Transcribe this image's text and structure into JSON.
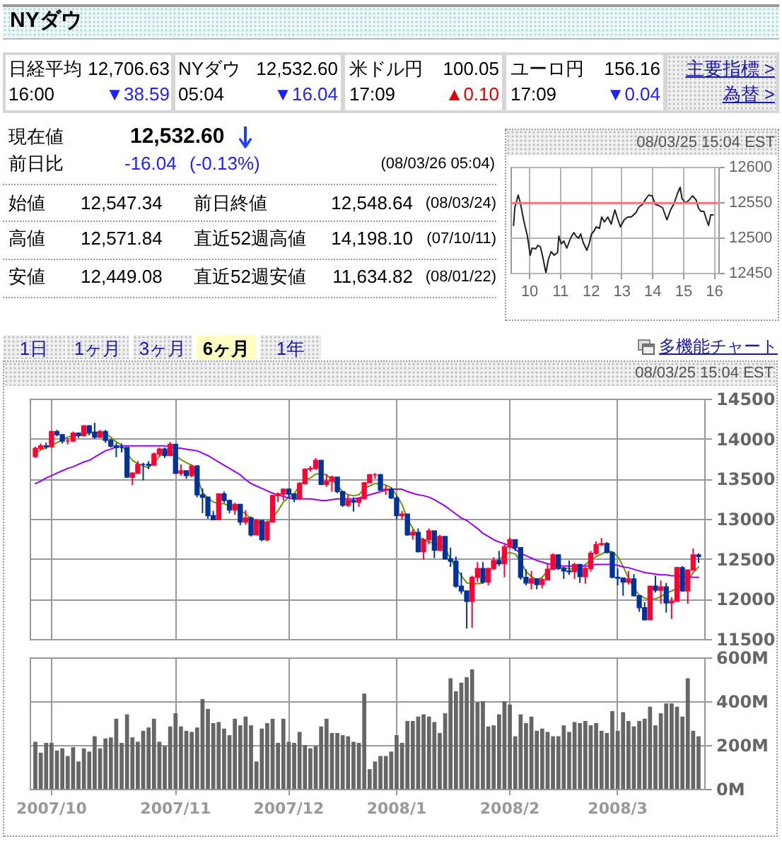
{
  "chart_data": [
    {
      "type": "other",
      "title": "NYダウ",
      "annotations": [
        "日経平均",
        "12,706.63",
        "16:00",
        "▼38.59",
        "NYダウ",
        "12,532.60",
        "05:04",
        "▼16.04",
        "米ドル円",
        "100.05",
        "17:09",
        "▲0.10",
        "ユーロ円",
        "156.16",
        "17:09",
        "▼0.04",
        "主要指標 >",
        "為替 >",
        "現在値",
        "12,532.60",
        "前日比",
        "-16.04",
        "(-0.13%)",
        "(08/03/26 05:04)",
        "始値",
        "12,547.34",
        "前日終値",
        "12,548.64",
        "(08/03/24)",
        "高値",
        "12,571.84",
        "直近52週高値",
        "14,198.10",
        "(07/10/11)",
        "安値",
        "12,449.08",
        "直近52週安値",
        "11,634.82",
        "(08/01/22)",
        "1日",
        "1ヶ月",
        "3ヶ月",
        "6ヶ月",
        "1年",
        "多機能チャート"
      ]
    },
    {
      "type": "line",
      "subtitle": "08/03/25 15:04 EST",
      "x": [
        9.5,
        9.54,
        9.65,
        9.72,
        9.84,
        9.95,
        10.04,
        10.1,
        10.22,
        10.29,
        10.37,
        10.45,
        10.55,
        10.63,
        10.72,
        10.82,
        10.93,
        10.97,
        11.05,
        11.13,
        11.23,
        11.35,
        11.46,
        11.53,
        11.61,
        11.68,
        11.76,
        11.88,
        11.96,
        12.03,
        12.11,
        12.18,
        12.29,
        12.36,
        12.45,
        12.56,
        12.67,
        12.79,
        12.86,
        12.97,
        13.09,
        13.21,
        13.32,
        13.47,
        13.57,
        13.69,
        13.8,
        13.89,
        14,
        14.1,
        14.22,
        14.34,
        14.48,
        14.6,
        14.72,
        14.82,
        14.91,
        14.97,
        15.08,
        15.2,
        15.31,
        15.43,
        15.5,
        15.58,
        15.68,
        15.75,
        15.83,
        15.9,
        15.98
      ],
      "values": [
        12517,
        12542,
        12560,
        12549,
        12522,
        12502,
        12475,
        12485,
        12484,
        12489,
        12487,
        12472,
        12450,
        12469,
        12480,
        12475,
        12479,
        12502,
        12491,
        12495,
        12485,
        12499,
        12507,
        12502,
        12499,
        12505,
        12493,
        12482,
        12492,
        12505,
        12509,
        12515,
        12513,
        12529,
        12522,
        12529,
        12519,
        12539,
        12529,
        12515,
        12525,
        12529,
        12529,
        12535,
        12543,
        12547,
        12555,
        12560,
        12559,
        12547,
        12545,
        12542,
        12525,
        12539,
        12549,
        12562,
        12571,
        12555,
        12549,
        12553,
        12559,
        12553,
        12542,
        12537,
        12537,
        12527,
        12517,
        12532,
        12532
      ],
      "color": "#222222",
      "xlim": [
        9.4,
        16.15
      ],
      "ylim": [
        12450,
        12600
      ],
      "xticks": [
        10,
        11,
        12,
        13,
        14,
        15,
        16
      ],
      "yticks": [
        12450,
        12500,
        12550,
        12600
      ],
      "grid": true,
      "ref_lines": [
        {
          "axis": "y",
          "value": 12548.64,
          "color": "#ff7070"
        }
      ]
    },
    {
      "type": "candlestick",
      "subtitle": "08/03/25 15:04 EST",
      "categories": [
        null,
        null,
        null,
        "2007/10",
        null,
        null,
        null,
        null,
        null,
        null,
        null,
        null,
        null,
        null,
        null,
        null,
        null,
        null,
        null,
        null,
        null,
        null,
        null,
        null,
        null,
        null,
        "2007/11",
        null,
        null,
        null,
        null,
        null,
        null,
        null,
        null,
        null,
        null,
        null,
        null,
        null,
        null,
        null,
        null,
        null,
        null,
        null,
        null,
        "2007/12",
        null,
        null,
        null,
        null,
        null,
        null,
        null,
        null,
        null,
        null,
        null,
        null,
        null,
        null,
        null,
        null,
        null,
        null,
        null,
        "2008/1",
        null,
        null,
        null,
        null,
        null,
        null,
        null,
        null,
        null,
        null,
        null,
        null,
        null,
        null,
        null,
        null,
        null,
        null,
        null,
        null,
        "2008/2",
        null,
        null,
        null,
        null,
        null,
        null,
        null,
        null,
        null,
        null,
        null,
        null,
        null,
        null,
        null,
        null,
        null,
        null,
        null,
        "2008/3",
        null,
        null,
        null,
        null,
        null,
        null,
        null,
        null,
        null,
        null,
        null,
        null,
        null,
        null,
        null
      ],
      "ohlc": [
        [
          13780,
          13900,
          13760,
          13880
        ],
        [
          13880,
          13940,
          13860,
          13910
        ],
        [
          13910,
          13950,
          13870,
          13900
        ],
        [
          13900,
          14100,
          13890,
          14090
        ],
        [
          14090,
          14110,
          14030,
          14050
        ],
        [
          14050,
          14060,
          13940,
          13970
        ],
        [
          13970,
          14010,
          13930,
          13970
        ],
        [
          13970,
          14090,
          13960,
          14070
        ],
        [
          14070,
          14080,
          14010,
          14040
        ],
        [
          14040,
          14170,
          14030,
          14160
        ],
        [
          14160,
          14170,
          14040,
          14080
        ],
        [
          14080,
          14200,
          14000,
          14020
        ],
        [
          14020,
          14110,
          14010,
          14090
        ],
        [
          14090,
          14110,
          13950,
          13980
        ],
        [
          13980,
          14000,
          13890,
          13910
        ],
        [
          13910,
          13950,
          13770,
          13890
        ],
        [
          13890,
          13940,
          13830,
          13890
        ],
        [
          13890,
          13890,
          13510,
          13520
        ],
        [
          13520,
          13580,
          13420,
          13570
        ],
        [
          13570,
          13720,
          13560,
          13680
        ],
        [
          13680,
          13700,
          13480,
          13680
        ],
        [
          13680,
          13720,
          13620,
          13670
        ],
        [
          13670,
          13830,
          13660,
          13810
        ],
        [
          13810,
          13890,
          13780,
          13870
        ],
        [
          13870,
          13890,
          13760,
          13790
        ],
        [
          13790,
          13960,
          13790,
          13930
        ],
        [
          13930,
          13930,
          13560,
          13570
        ],
        [
          13570,
          13680,
          13540,
          13600
        ],
        [
          13600,
          13600,
          13500,
          13540
        ],
        [
          13540,
          13680,
          13520,
          13660
        ],
        [
          13660,
          13670,
          13270,
          13300
        ],
        [
          13300,
          13380,
          13070,
          13270
        ],
        [
          13270,
          13270,
          13000,
          13040
        ],
        [
          13040,
          13100,
          12980,
          12990
        ],
        [
          12990,
          13310,
          12990,
          13310
        ],
        [
          13310,
          13340,
          13200,
          13230
        ],
        [
          13230,
          13240,
          13070,
          13110
        ],
        [
          13110,
          13200,
          13050,
          13180
        ],
        [
          13180,
          13180,
          12920,
          12960
        ],
        [
          12960,
          13110,
          12930,
          13010
        ],
        [
          13010,
          13030,
          12780,
          12800
        ],
        [
          12800,
          13000,
          12800,
          12980
        ],
        [
          12980,
          12980,
          12720,
          12740
        ],
        [
          12740,
          12980,
          12720,
          12960
        ],
        [
          12960,
          13300,
          12960,
          13290
        ],
        [
          13290,
          13330,
          13210,
          13310
        ],
        [
          13310,
          13380,
          13230,
          13370
        ],
        [
          13370,
          13380,
          13260,
          13310
        ],
        [
          13310,
          13320,
          13210,
          13250
        ],
        [
          13250,
          13460,
          13240,
          13440
        ],
        [
          13440,
          13630,
          13430,
          13620
        ],
        [
          13620,
          13660,
          13590,
          13630
        ],
        [
          13630,
          13760,
          13610,
          13730
        ],
        [
          13730,
          13730,
          13420,
          13430
        ],
        [
          13430,
          13560,
          13400,
          13470
        ],
        [
          13470,
          13540,
          13340,
          13520
        ],
        [
          13520,
          13520,
          13320,
          13340
        ],
        [
          13340,
          13340,
          13150,
          13170
        ],
        [
          13170,
          13310,
          13150,
          13230
        ],
        [
          13230,
          13270,
          13090,
          13210
        ],
        [
          13210,
          13260,
          13150,
          13250
        ],
        [
          13250,
          13460,
          13250,
          13450
        ],
        [
          13450,
          13560,
          13450,
          13550
        ],
        [
          13550,
          13570,
          13500,
          13550
        ],
        [
          13550,
          13560,
          13350,
          13360
        ],
        [
          13360,
          13420,
          13300,
          13370
        ],
        [
          13370,
          13390,
          13250,
          13260
        ],
        [
          13260,
          13290,
          12990,
          13040
        ],
        [
          13040,
          13100,
          12990,
          13060
        ],
        [
          13060,
          13060,
          12790,
          12800
        ],
        [
          12800,
          12870,
          12740,
          12830
        ],
        [
          12830,
          12880,
          12580,
          12590
        ],
        [
          12590,
          12760,
          12490,
          12740
        ],
        [
          12740,
          12880,
          12680,
          12850
        ],
        [
          12850,
          12850,
          12510,
          12610
        ],
        [
          12610,
          12800,
          12600,
          12780
        ],
        [
          12780,
          12780,
          12490,
          12500
        ],
        [
          12500,
          12640,
          12400,
          12470
        ],
        [
          12470,
          12530,
          12140,
          12160
        ],
        [
          12160,
          12330,
          12060,
          12100
        ],
        [
          12100,
          12100,
          11630,
          11970
        ],
        [
          11970,
          12290,
          11640,
          12270
        ],
        [
          12270,
          12460,
          12210,
          12380
        ],
        [
          12380,
          12460,
          12190,
          12210
        ],
        [
          12210,
          12390,
          12170,
          12380
        ],
        [
          12380,
          12520,
          12360,
          12480
        ],
        [
          12480,
          12600,
          12410,
          12440
        ],
        [
          12440,
          12680,
          12270,
          12650
        ],
        [
          12650,
          12770,
          12630,
          12740
        ],
        [
          12740,
          12740,
          12600,
          12640
        ],
        [
          12640,
          12640,
          12240,
          12270
        ],
        [
          12270,
          12370,
          12170,
          12200
        ],
        [
          12200,
          12350,
          12120,
          12250
        ],
        [
          12250,
          12260,
          12120,
          12180
        ],
        [
          12180,
          12260,
          12130,
          12240
        ],
        [
          12240,
          12440,
          12240,
          12370
        ],
        [
          12370,
          12570,
          12370,
          12550
        ],
        [
          12550,
          12560,
          12360,
          12380
        ],
        [
          12380,
          12400,
          12250,
          12350
        ],
        [
          12350,
          12480,
          12300,
          12340
        ],
        [
          12340,
          12450,
          12250,
          12430
        ],
        [
          12430,
          12430,
          12200,
          12280
        ],
        [
          12280,
          12400,
          12190,
          12380
        ],
        [
          12380,
          12600,
          12340,
          12570
        ],
        [
          12570,
          12720,
          12550,
          12680
        ],
        [
          12680,
          12760,
          12660,
          12690
        ],
        [
          12690,
          12710,
          12570,
          12580
        ],
        [
          12580,
          12580,
          12260,
          12270
        ],
        [
          12270,
          12380,
          12170,
          12260
        ],
        [
          12260,
          12260,
          12040,
          12210
        ],
        [
          12210,
          12350,
          12180,
          12250
        ],
        [
          12250,
          12310,
          12030,
          12040
        ],
        [
          12040,
          12040,
          11840,
          11890
        ],
        [
          11890,
          11960,
          11730,
          11740
        ],
        [
          11740,
          12160,
          11740,
          12160
        ],
        [
          12160,
          12290,
          12080,
          12110
        ],
        [
          12110,
          12230,
          11940,
          12150
        ],
        [
          12150,
          12200,
          11830,
          11950
        ],
        [
          11950,
          12020,
          11750,
          11970
        ],
        [
          11970,
          12400,
          11970,
          12390
        ],
        [
          12390,
          12410,
          12090,
          12100
        ],
        [
          12100,
          12370,
          11940,
          12360
        ],
        [
          12360,
          12630,
          12360,
          12550
        ],
        [
          12550,
          12570,
          12450,
          12530
        ]
      ],
      "colors": [
        "#ff0033",
        "#ff0033",
        "#003399",
        "#ff0033",
        "#003399",
        "#003399",
        "#ff0033",
        "#ff0033",
        "#003399",
        "#ff0033",
        "#003399",
        "#003399",
        "#ff0033",
        "#003399",
        "#003399",
        "#003399",
        "#003399",
        "#003399",
        "#ff0033",
        "#ff0033",
        "#003399",
        "#003399",
        "#ff0033",
        "#ff0033",
        "#003399",
        "#ff0033",
        "#003399",
        "#ff0033",
        "#003399",
        "#ff0033",
        "#003399",
        "#003399",
        "#003399",
        "#003399",
        "#ff0033",
        "#003399",
        "#003399",
        "#ff0033",
        "#003399",
        "#ff0033",
        "#003399",
        "#ff0033",
        "#003399",
        "#ff0033",
        "#ff0033",
        "#ff0033",
        "#ff0033",
        "#003399",
        "#003399",
        "#ff0033",
        "#ff0033",
        "#ff0033",
        "#ff0033",
        "#003399",
        "#ff0033",
        "#ff0033",
        "#003399",
        "#003399",
        "#ff0033",
        "#003399",
        "#ff0033",
        "#ff0033",
        "#ff0033",
        "#ff0033",
        "#003399",
        "#ff0033",
        "#003399",
        "#003399",
        "#ff0033",
        "#003399",
        "#ff0033",
        "#003399",
        "#ff0033",
        "#ff0033",
        "#003399",
        "#ff0033",
        "#003399",
        "#003399",
        "#003399",
        "#003399",
        "#003399",
        "#ff0033",
        "#ff0033",
        "#003399",
        "#ff0033",
        "#ff0033",
        "#003399",
        "#ff0033",
        "#ff0033",
        "#003399",
        "#003399",
        "#003399",
        "#ff0033",
        "#003399",
        "#ff0033",
        "#ff0033",
        "#ff0033",
        "#003399",
        "#003399",
        "#003399",
        "#ff0033",
        "#003399",
        "#ff0033",
        "#ff0033",
        "#ff0033",
        "#ff0033",
        "#003399",
        "#003399",
        "#003399",
        "#003399",
        "#ff0033",
        "#003399",
        "#003399",
        "#003399",
        "#ff0033",
        "#003399",
        "#ff0033",
        "#003399",
        "#ff0033",
        "#ff0033",
        "#003399",
        "#ff0033",
        "#ff0033",
        "#003399"
      ],
      "series": [
        {
          "type": "line",
          "color": "#669900",
          "values": [
            13820,
            13860,
            13890,
            13920,
            13950,
            13990,
            14020,
            14040,
            14050,
            14060,
            14070,
            14080,
            14070,
            14060,
            14020,
            13960,
            13920,
            13820,
            13730,
            13690,
            13660,
            13640,
            13700,
            13780,
            13830,
            13820,
            13790,
            13740,
            13700,
            13670,
            13520,
            13330,
            13260,
            13210,
            13190,
            13190,
            13160,
            13140,
            13110,
            13060,
            13000,
            12980,
            12930,
            12940,
            13020,
            13100,
            13210,
            13270,
            13310,
            13420,
            13480,
            13510,
            13560,
            13560,
            13550,
            13490,
            13420,
            13340,
            13300,
            13290,
            13300,
            13380,
            13410,
            13440,
            13440,
            13420,
            13390,
            13290,
            13180,
            13000,
            12880,
            12780,
            12740,
            12710,
            12700,
            12670,
            12630,
            12500,
            12390,
            12290,
            12200,
            12190,
            12190,
            12200,
            12330,
            12400,
            12480,
            12560,
            12580,
            12560,
            12470,
            12340,
            12280,
            12240,
            12270,
            12350,
            12400,
            12400,
            12390,
            12380,
            12370,
            12380,
            12430,
            12480,
            12530,
            12560,
            12600,
            12590,
            12530,
            12410,
            12260,
            12130,
            12050,
            12010,
            12000,
            12000,
            12030,
            12070,
            12100,
            12130,
            null,
            12220,
            12330,
            12400
          ]
        },
        {
          "type": "line",
          "color": "#9900ff",
          "values": [
            13440,
            13470,
            13510,
            13540,
            13570,
            13600,
            13630,
            13650,
            13680,
            13710,
            13730,
            13770,
            13810,
            13850,
            13870,
            13900,
            13910,
            13910,
            13910,
            13910,
            13910,
            13910,
            13910,
            13910,
            13910,
            13900,
            13890,
            13880,
            13870,
            13860,
            13850,
            13820,
            13790,
            13750,
            13710,
            13670,
            13630,
            13590,
            13550,
            13490,
            13440,
            13410,
            13380,
            13350,
            13320,
            13300,
            13280,
            13260,
            13250,
            13250,
            13250,
            13250,
            13240,
            13230,
            13230,
            13240,
            13250,
            13250,
            13250,
            13250,
            13260,
            13280,
            13300,
            13320,
            13340,
            13360,
            13370,
            13370,
            13370,
            13340,
            13320,
            13300,
            13290,
            13270,
            13240,
            13200,
            13160,
            13110,
            13060,
            13010,
            12980,
            12930,
            12880,
            12820,
            12780,
            12740,
            12710,
            12690,
            12660,
            12620,
            12570,
            12540,
            12510,
            12480,
            12460,
            12440,
            12430,
            12420,
            12410,
            12410,
            12410,
            12410,
            12410,
            12420,
            12430,
            12430,
            12430,
            12430,
            12420,
            12400,
            12390,
            12370,
            12350,
            12330,
            12320,
            12310,
            12300,
            12300,
            12290,
            12290,
            12280,
            12280,
            12270,
            12270
          ]
        }
      ],
      "ylim": [
        11500,
        14500
      ],
      "yticks": [
        11500,
        12000,
        12500,
        13000,
        13500,
        14000,
        14500
      ],
      "grid": true,
      "tick_labels": "y"
    },
    {
      "type": "bar",
      "categories": [
        null,
        null,
        null,
        "2007/10",
        null,
        null,
        null,
        null,
        null,
        null,
        null,
        null,
        null,
        null,
        null,
        null,
        null,
        null,
        null,
        null,
        null,
        null,
        null,
        null,
        null,
        null,
        "2007/11",
        null,
        null,
        null,
        null,
        null,
        null,
        null,
        null,
        null,
        null,
        null,
        null,
        null,
        null,
        null,
        null,
        null,
        null,
        null,
        null,
        "2007/12",
        null,
        null,
        null,
        null,
        null,
        null,
        null,
        null,
        null,
        null,
        null,
        null,
        null,
        null,
        null,
        null,
        null,
        null,
        null,
        "2008/1",
        null,
        null,
        null,
        null,
        null,
        null,
        null,
        null,
        null,
        null,
        null,
        null,
        null,
        null,
        null,
        null,
        null,
        null,
        null,
        null,
        "2008/2",
        null,
        null,
        null,
        null,
        null,
        null,
        null,
        null,
        null,
        null,
        null,
        null,
        null,
        null,
        null,
        null,
        null,
        null,
        null,
        "2008/3",
        null,
        null,
        null,
        null,
        null,
        null,
        null,
        null,
        null,
        null,
        null,
        null,
        null,
        null,
        null
      ],
      "values": [
        215,
        165,
        210,
        210,
        175,
        185,
        150,
        190,
        125,
        185,
        170,
        240,
        185,
        230,
        235,
        320,
        210,
        340,
        235,
        215,
        265,
        280,
        320,
        215,
        195,
        285,
        345,
        285,
        265,
        260,
        280,
        410,
        365,
        300,
        305,
        275,
        245,
        320,
        290,
        330,
        290,
        125,
        275,
        300,
        320,
        210,
        320,
        215,
        210,
        260,
        200,
        185,
        195,
        285,
        320,
        255,
        255,
        245,
        240,
        215,
        210,
        435,
        90,
        125,
        150,
        150,
        170,
        245,
        210,
        310,
        310,
        330,
        340,
        330,
        305,
        255,
        345,
        505,
        445,
        485,
        510,
        545,
        395,
        400,
        285,
        290,
        340,
        400,
        385,
        240,
        340,
        300,
        330,
        265,
        275,
        260,
        240,
        240,
        290,
        260,
        305,
        300,
        310,
        290,
        300,
        265,
        255,
        355,
        265,
        350,
        310,
        285,
        310,
        320,
        375,
        290,
        345,
        390,
        390,
        375,
        330,
        505,
        265,
        240
      ],
      "color": "#666666",
      "ylim": [
        0,
        600
      ],
      "yticks": [
        {
          "value": 0,
          "label": "0M"
        },
        {
          "value": 200,
          "label": "200M"
        },
        {
          "value": 400,
          "label": "400M"
        },
        {
          "value": 600,
          "label": "600M"
        }
      ],
      "grid": true
    }
  ]
}
